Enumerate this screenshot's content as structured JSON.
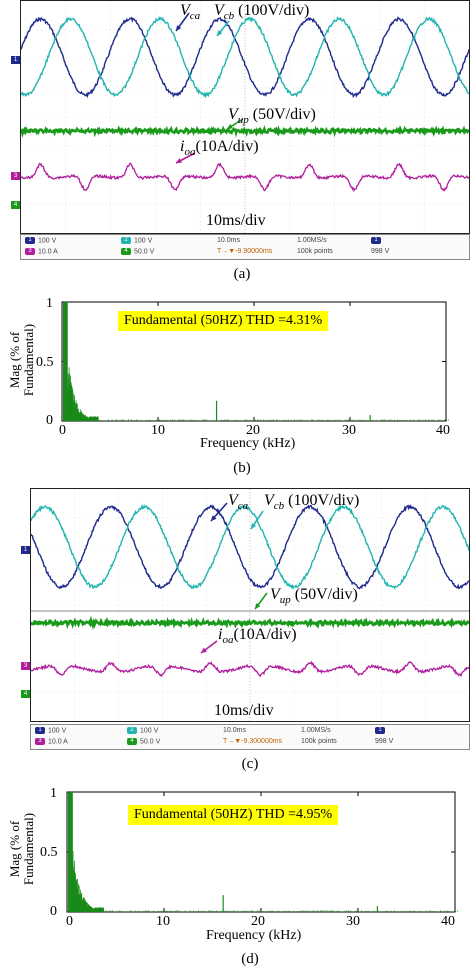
{
  "figure_a": {
    "caption": "(a)",
    "annotations": {
      "vca": "V",
      "vca_sub": "ca",
      "vcb": "V",
      "vcb_sub": "cb",
      "vc_scale": "(100V/div)",
      "vup": "V",
      "vup_sub": "up",
      "vup_scale": "(50V/div)",
      "ioa": "i",
      "ioa_sub": "oa",
      "ioa_scale": "(10A/div)",
      "timebase": "10ms/div"
    },
    "ch_markers": [
      "1",
      "3",
      "4"
    ],
    "panel": {
      "ch1": {
        "num": "1",
        "val": "100 V"
      },
      "ch2": {
        "num": "2",
        "val": "100 V"
      },
      "ch3": {
        "num": "3",
        "val": "10.0 A"
      },
      "ch4": {
        "num": "4",
        "val": "50.0 V"
      },
      "time": "10.0ms",
      "offset": "T→▼-9.90000ms",
      "rate": "1.00MS/s",
      "points": "100k points",
      "trig_num": "1",
      "trig_val": "998 V"
    }
  },
  "figure_b": {
    "caption": "(b)",
    "thd_box": "Fundamental (50HZ) THD =4.31%",
    "ylabel_line1": "Mag (% of",
    "ylabel_line2": "Fundamental)",
    "xlabel": "Frequency (kHz)",
    "yticks": [
      "1",
      "0.5",
      "0"
    ],
    "xticks": [
      "0",
      "10",
      "20",
      "30",
      "40"
    ]
  },
  "figure_c": {
    "caption": "(c)",
    "annotations": {
      "vca": "V",
      "vca_sub": "ca",
      "vcb": "V",
      "vcb_sub": "cb",
      "vc_scale": "(100V/div)",
      "vup": "V",
      "vup_sub": "up",
      "vup_scale": "(50V/div)",
      "ioa": "i",
      "ioa_sub": "oa",
      "ioa_scale": "(10A/div)",
      "timebase": "10ms/div"
    },
    "ch_markers": [
      "1",
      "3",
      "4"
    ],
    "panel": {
      "ch1": {
        "num": "1",
        "val": "100 V"
      },
      "ch2": {
        "num": "2",
        "val": "100 V"
      },
      "ch3": {
        "num": "3",
        "val": "10.0 A"
      },
      "ch4": {
        "num": "4",
        "val": "50.0 V"
      },
      "time": "10.0ms",
      "offset": "T→▼-9.300000ms",
      "rate": "1.00MS/s",
      "points": "100k points",
      "trig_num": "1",
      "trig_val": "998 V"
    }
  },
  "figure_d": {
    "caption": "(d)",
    "thd_box": "Fundamental (50HZ) THD =4.95%",
    "ylabel_line1": "Mag (% of",
    "ylabel_line2": "Fundamental)",
    "xlabel": "Frequency (kHz)",
    "yticks": [
      "1",
      "0.5",
      "0"
    ],
    "xticks": [
      "0",
      "10",
      "20",
      "30",
      "40"
    ]
  },
  "colors": {
    "ch1": "#1f2a8c",
    "ch2": "#22b5b0",
    "ch3": "#b01e9c",
    "ch4": "#1a9a1a",
    "spectrum": "#1a8a1a",
    "thd_bg": "#ffff00"
  }
}
